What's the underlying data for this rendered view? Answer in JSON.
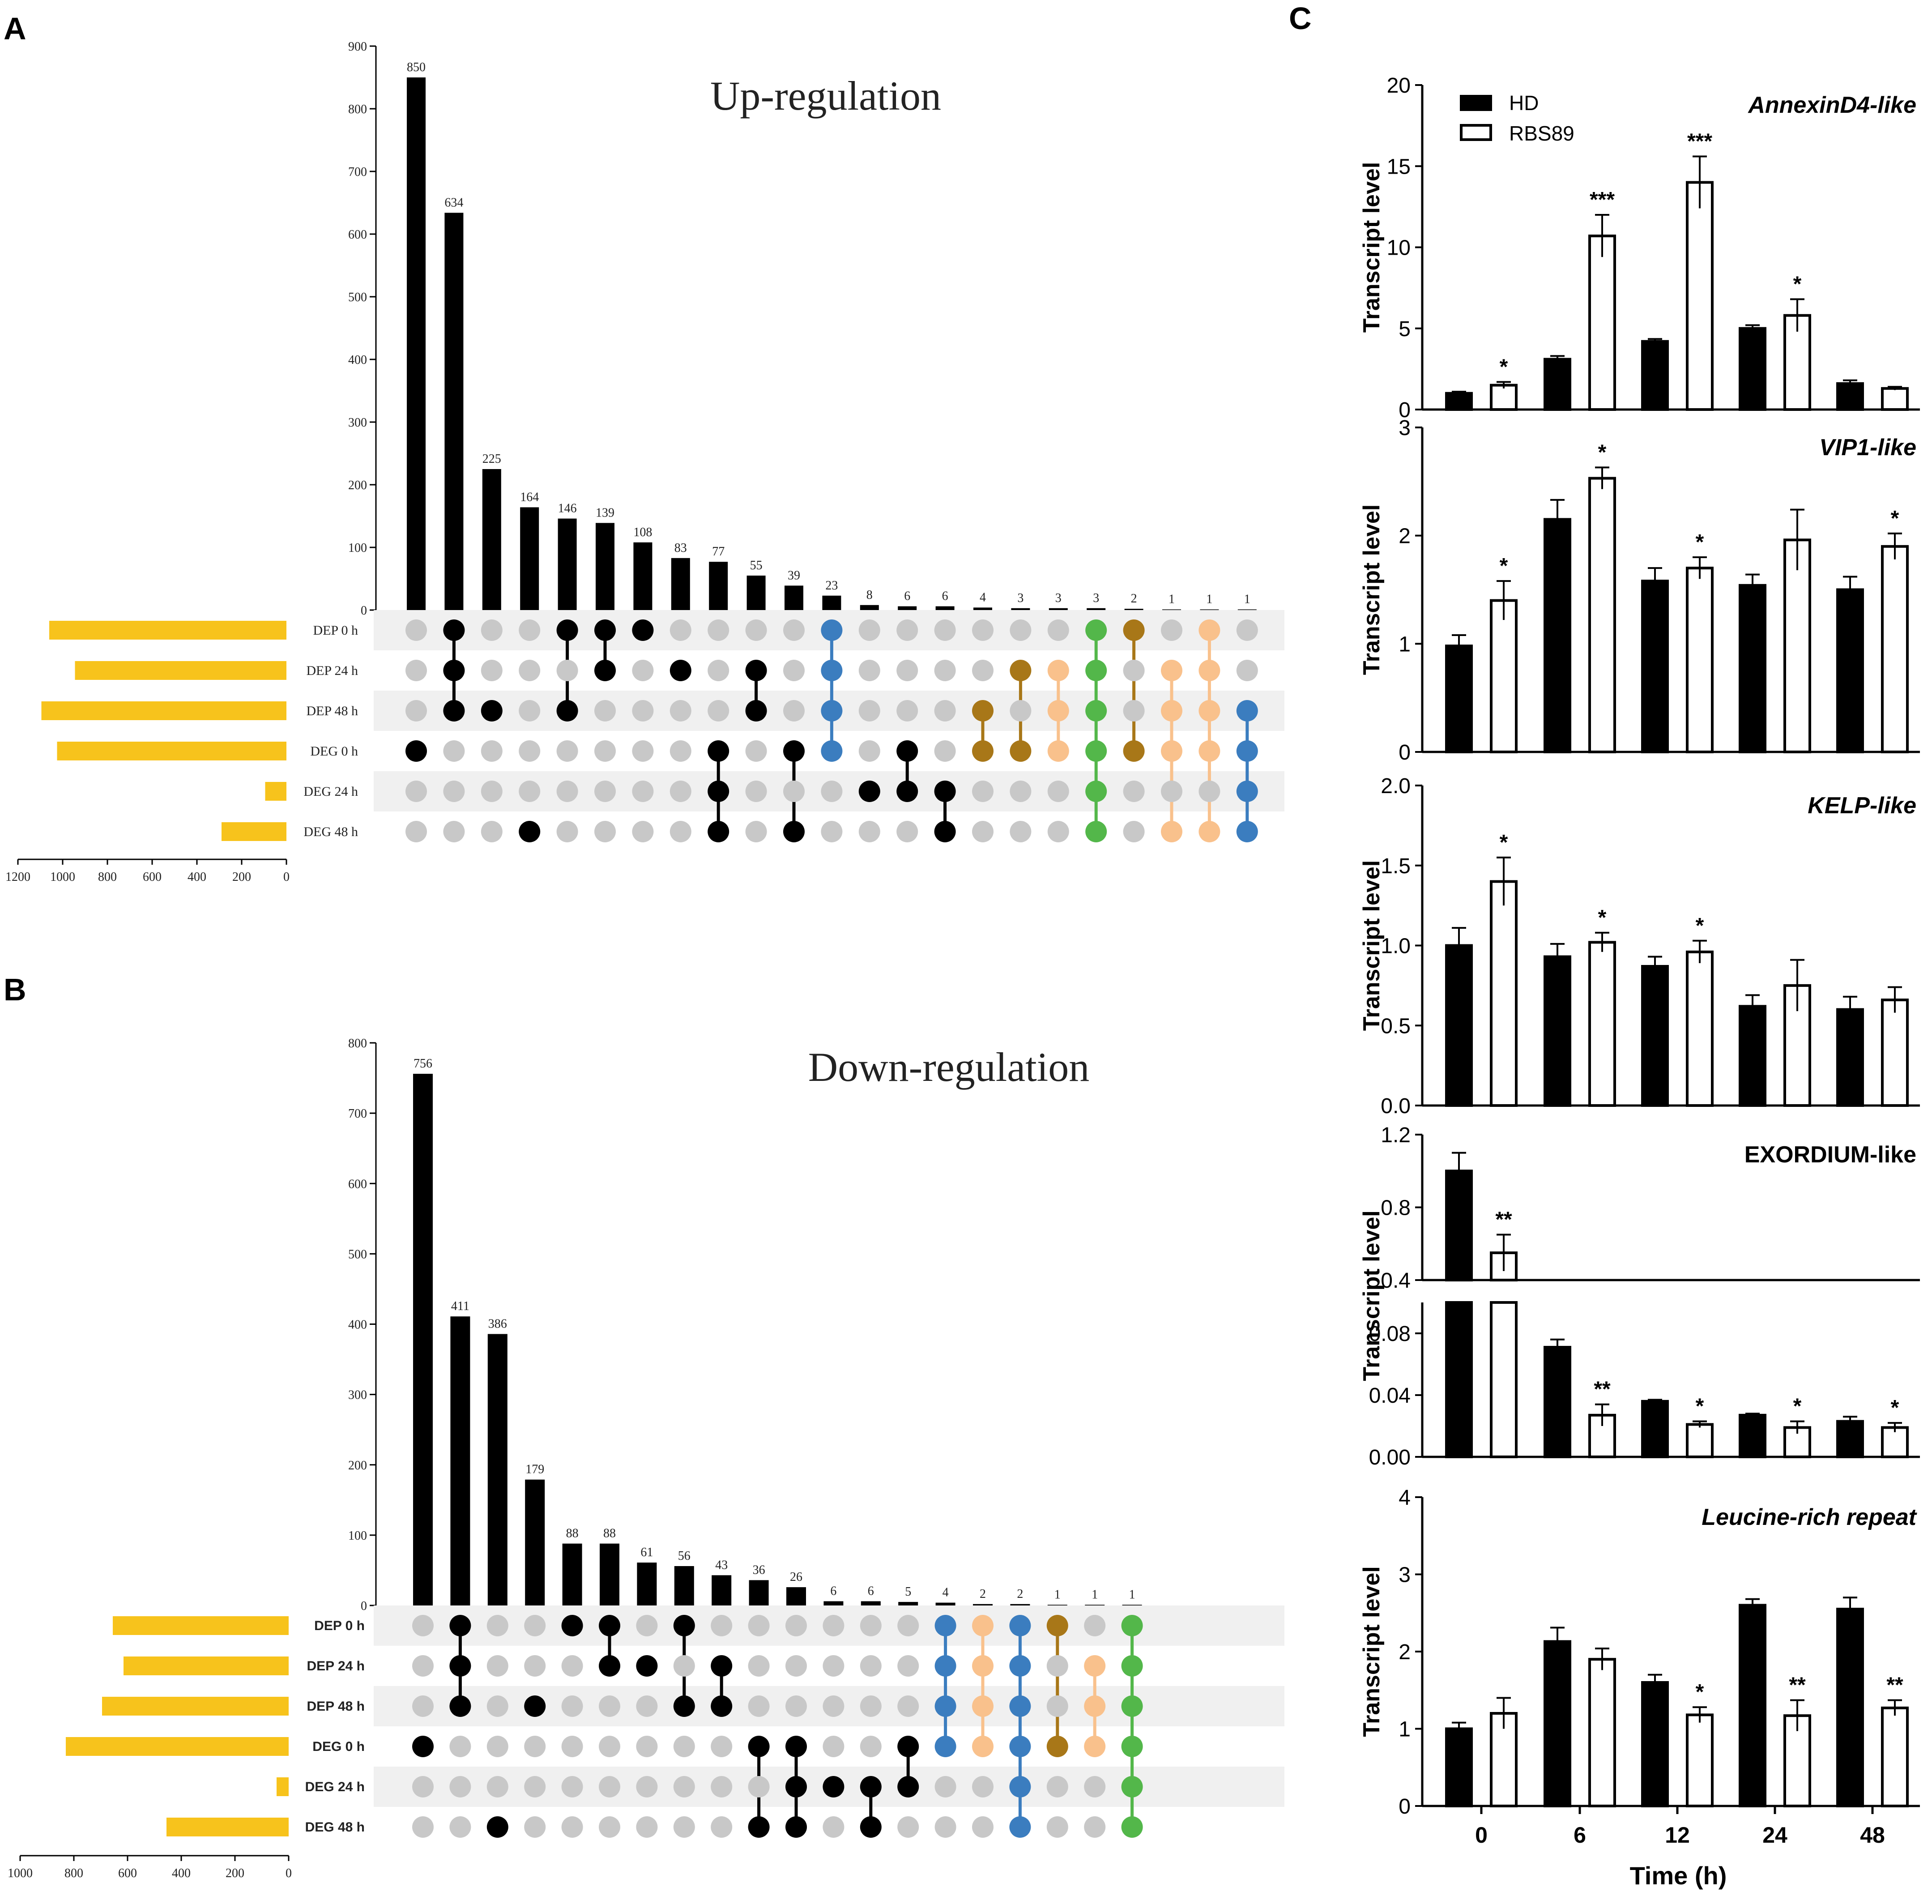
{
  "panels": {
    "a": "A",
    "b": "B",
    "c": "C"
  },
  "colors": {
    "bar": "#000000",
    "set_bar": "#F7C31C",
    "dot_off": "#C8C8C8",
    "stripe": "#F0F0F0",
    "blue": "#3B7DBF",
    "brown": "#A87718",
    "peach": "#F9C18C",
    "green": "#53B74A"
  },
  "chart_data": [
    {
      "id": "A",
      "type": "upset",
      "title": "Up-regulation",
      "sets": [
        "DEP 0 h",
        "DEP 24 h",
        "DEP 48 h",
        "DEG 0 h",
        "DEG 24 h",
        "DEG 48 h"
      ],
      "set_sizes": [
        1060,
        945,
        1095,
        1025,
        95,
        290
      ],
      "set_axis_ticks": [
        1200,
        1000,
        800,
        600,
        400,
        200,
        0
      ],
      "set_axis_max": 1200,
      "ylim": [
        0,
        900
      ],
      "y_ticks": [
        0,
        100,
        200,
        300,
        400,
        500,
        600,
        700,
        800,
        900
      ],
      "intersections": [
        {
          "value": 850,
          "label": "850",
          "members": [
            3
          ],
          "color": "black"
        },
        {
          "value": 634,
          "label": "634",
          "members": [
            0,
            1,
            2
          ],
          "color": "black"
        },
        {
          "value": 225,
          "label": "225",
          "members": [
            2
          ],
          "color": "black"
        },
        {
          "value": 164,
          "label": "164",
          "members": [
            5
          ],
          "color": "black"
        },
        {
          "value": 146,
          "label": "146",
          "members": [
            0,
            2
          ],
          "color": "black"
        },
        {
          "value": 139,
          "label": "139",
          "members": [
            0,
            1
          ],
          "color": "black"
        },
        {
          "value": 108,
          "label": "108",
          "members": [
            0
          ],
          "color": "black"
        },
        {
          "value": 83,
          "label": "83",
          "members": [
            1
          ],
          "color": "black"
        },
        {
          "value": 77,
          "label": "77",
          "members": [
            3,
            4,
            5
          ],
          "color": "black"
        },
        {
          "value": 55,
          "label": "55",
          "members": [
            1,
            2
          ],
          "color": "black"
        },
        {
          "value": 39,
          "label": "39",
          "members": [
            3,
            5
          ],
          "color": "black"
        },
        {
          "value": 23,
          "label": "23",
          "members": [
            0,
            1,
            2,
            3
          ],
          "color": "blue"
        },
        {
          "value": 8,
          "label": "8",
          "members": [
            4
          ],
          "color": "black"
        },
        {
          "value": 6,
          "label": "6",
          "members": [
            3,
            4
          ],
          "color": "black"
        },
        {
          "value": 6,
          "label": "6",
          "members": [
            4,
            5
          ],
          "color": "black"
        },
        {
          "value": 4,
          "label": "4",
          "members": [
            2,
            3
          ],
          "color": "brown"
        },
        {
          "value": 3,
          "label": "3",
          "members": [
            1,
            3
          ],
          "color": "brown"
        },
        {
          "value": 3,
          "label": "3",
          "members": [
            1,
            2,
            3
          ],
          "color": "peach"
        },
        {
          "value": 3,
          "label": "3",
          "members": [
            0,
            1,
            2,
            3,
            4,
            5
          ],
          "color": "green"
        },
        {
          "value": 2,
          "label": "2",
          "members": [
            0,
            3
          ],
          "color": "brown"
        },
        {
          "value": 1,
          "label": "1",
          "members": [
            1,
            2,
            3,
            5
          ],
          "color": "peach"
        },
        {
          "value": 1,
          "label": "1",
          "members": [
            0,
            1,
            2,
            3,
            5
          ],
          "color": "peach"
        },
        {
          "value": 1,
          "label": "1",
          "members": [
            2,
            3,
            4,
            5
          ],
          "color": "blue"
        }
      ]
    },
    {
      "id": "B",
      "type": "upset",
      "title": "Down-regulation",
      "sets": [
        "DEP 0 h",
        "DEP 24 h",
        "DEP 48 h",
        "DEG 0 h",
        "DEG 24 h",
        "DEG 48 h"
      ],
      "set_sizes": [
        655,
        615,
        695,
        830,
        45,
        455
      ],
      "set_axis_ticks": [
        1000,
        800,
        600,
        400,
        200,
        0
      ],
      "set_axis_max": 1000,
      "ylim": [
        0,
        800
      ],
      "y_ticks": [
        0,
        100,
        200,
        300,
        400,
        500,
        600,
        700,
        800
      ],
      "intersections": [
        {
          "value": 756,
          "label": "756",
          "members": [
            3
          ],
          "color": "black"
        },
        {
          "value": 411,
          "label": "411",
          "members": [
            0,
            1,
            2
          ],
          "color": "black"
        },
        {
          "value": 386,
          "label": "386",
          "members": [
            5
          ],
          "color": "black"
        },
        {
          "value": 179,
          "label": "179",
          "members": [
            2
          ],
          "color": "black"
        },
        {
          "value": 88,
          "label": "88",
          "members": [
            0
          ],
          "color": "black"
        },
        {
          "value": 88,
          "label": "88",
          "members": [
            0,
            1
          ],
          "color": "black"
        },
        {
          "value": 61,
          "label": "61",
          "members": [
            1
          ],
          "color": "black"
        },
        {
          "value": 56,
          "label": "56",
          "members": [
            0,
            2
          ],
          "color": "black"
        },
        {
          "value": 43,
          "label": "43",
          "members": [
            1,
            2
          ],
          "color": "black"
        },
        {
          "value": 36,
          "label": "36",
          "members": [
            3,
            5
          ],
          "color": "black"
        },
        {
          "value": 26,
          "label": "26",
          "members": [
            3,
            4,
            5
          ],
          "color": "black"
        },
        {
          "value": 6,
          "label": "6",
          "members": [
            4
          ],
          "color": "black"
        },
        {
          "value": 6,
          "label": "6",
          "members": [
            4,
            5
          ],
          "color": "black"
        },
        {
          "value": 5,
          "label": "5",
          "members": [
            3,
            4
          ],
          "color": "black"
        },
        {
          "value": 4,
          "label": "4",
          "members": [
            0,
            1,
            2,
            3
          ],
          "color": "blue"
        },
        {
          "value": 2,
          "label": "2",
          "members": [
            0,
            1,
            2,
            3
          ],
          "color": "peach"
        },
        {
          "value": 2,
          "label": "2",
          "members": [
            0,
            1,
            2,
            3,
            4,
            5
          ],
          "color": "blue"
        },
        {
          "value": 1,
          "label": "1",
          "members": [
            0,
            3
          ],
          "color": "brown"
        },
        {
          "value": 1,
          "label": "1",
          "members": [
            1,
            2,
            3
          ],
          "color": "peach"
        },
        {
          "value": 1,
          "label": "1",
          "members": [
            0,
            1,
            2,
            3,
            4,
            5
          ],
          "color": "green"
        }
      ]
    },
    {
      "id": "C",
      "type": "bar",
      "xlabel": "Time (h)",
      "ylabel": "Transcript level",
      "categories": [
        "0",
        "6",
        "12",
        "24",
        "48"
      ],
      "legend": [
        "HD",
        "RBS89"
      ],
      "legend_placement": "top-left",
      "subplots": [
        {
          "title": "AnnexinD4-like",
          "italic": true,
          "ylim": [
            0,
            20
          ],
          "y_ticks": [
            0,
            5,
            10,
            15,
            20
          ],
          "tick_labels": [
            "0",
            "5",
            "10",
            "15",
            "20"
          ],
          "series": [
            {
              "name": "HD",
              "values": [
                1.0,
                3.1,
                4.2,
                5.0,
                1.6
              ],
              "errors": [
                0.1,
                0.2,
                0.15,
                0.2,
                0.2
              ]
            },
            {
              "name": "RBS89",
              "values": [
                1.5,
                10.7,
                14.0,
                5.8,
                1.3
              ],
              "errors": [
                0.2,
                1.3,
                1.6,
                1.0,
                0.1
              ]
            }
          ],
          "sig": [
            "*",
            "***",
            "***",
            "*",
            ""
          ]
        },
        {
          "title": "VIP1-like",
          "italic": true,
          "ylim": [
            0,
            3
          ],
          "y_ticks": [
            0,
            1,
            2,
            3
          ],
          "tick_labels": [
            "0",
            "1",
            "2",
            "3"
          ],
          "series": [
            {
              "name": "HD",
              "values": [
                0.98,
                2.15,
                1.58,
                1.54,
                1.5
              ],
              "errors": [
                0.1,
                0.18,
                0.12,
                0.1,
                0.12
              ]
            },
            {
              "name": "RBS89",
              "values": [
                1.4,
                2.53,
                1.7,
                1.96,
                1.9
              ],
              "errors": [
                0.18,
                0.1,
                0.1,
                0.28,
                0.12
              ]
            }
          ],
          "sig": [
            "*",
            "*",
            "*",
            "",
            "*"
          ]
        },
        {
          "title": "KELP-like",
          "italic": true,
          "ylim": [
            0,
            2.0
          ],
          "y_ticks": [
            0,
            0.5,
            1.0,
            1.5,
            2.0
          ],
          "tick_labels": [
            "0.0",
            "0.5",
            "1.0",
            "1.5",
            "2.0"
          ],
          "series": [
            {
              "name": "HD",
              "values": [
                1.0,
                0.93,
                0.87,
                0.62,
                0.6
              ],
              "errors": [
                0.11,
                0.08,
                0.06,
                0.07,
                0.08
              ]
            },
            {
              "name": "RBS89",
              "values": [
                1.4,
                1.02,
                0.96,
                0.75,
                0.66
              ],
              "errors": [
                0.15,
                0.06,
                0.07,
                0.16,
                0.08
              ]
            }
          ],
          "sig": [
            "*",
            "*",
            "*",
            "",
            ""
          ]
        },
        {
          "title": "EXORDIUM-like",
          "italic": false,
          "broken_axis": true,
          "upper": {
            "ylim": [
              0.4,
              1.2
            ],
            "y_ticks": [
              0.4,
              0.8,
              1.2
            ],
            "tick_labels": [
              "0.4",
              "0.8",
              "1.2"
            ]
          },
          "lower": {
            "ylim": [
              0,
              0.1
            ],
            "y_ticks": [
              0,
              0.04,
              0.08
            ],
            "tick_labels": [
              "0.00",
              "0.04",
              "0.08"
            ]
          },
          "series": [
            {
              "name": "HD",
              "values": [
                1.0,
                0.071,
                0.036,
                0.027,
                0.023
              ],
              "errors": [
                0.1,
                0.005,
                0.001,
                0.001,
                0.003
              ]
            },
            {
              "name": "RBS89",
              "values": [
                0.55,
                0.027,
                0.021,
                0.019,
                0.019
              ],
              "errors": [
                0.1,
                0.007,
                0.002,
                0.004,
                0.003
              ]
            }
          ],
          "sig": [
            "**",
            "**",
            "*",
            "*",
            "*"
          ]
        },
        {
          "title": "Leucine-rich repeat",
          "italic": true,
          "ylim": [
            0,
            4
          ],
          "y_ticks": [
            0,
            1,
            2,
            3,
            4
          ],
          "tick_labels": [
            "0",
            "1",
            "2",
            "3",
            "4"
          ],
          "series": [
            {
              "name": "HD",
              "values": [
                1.0,
                2.13,
                1.6,
                2.6,
                2.55
              ],
              "errors": [
                0.08,
                0.18,
                0.1,
                0.08,
                0.15
              ]
            },
            {
              "name": "RBS89",
              "values": [
                1.2,
                1.9,
                1.18,
                1.17,
                1.27
              ],
              "errors": [
                0.2,
                0.14,
                0.1,
                0.2,
                0.1
              ]
            }
          ],
          "sig": [
            "",
            "",
            "*",
            "**",
            "**"
          ]
        }
      ]
    }
  ]
}
